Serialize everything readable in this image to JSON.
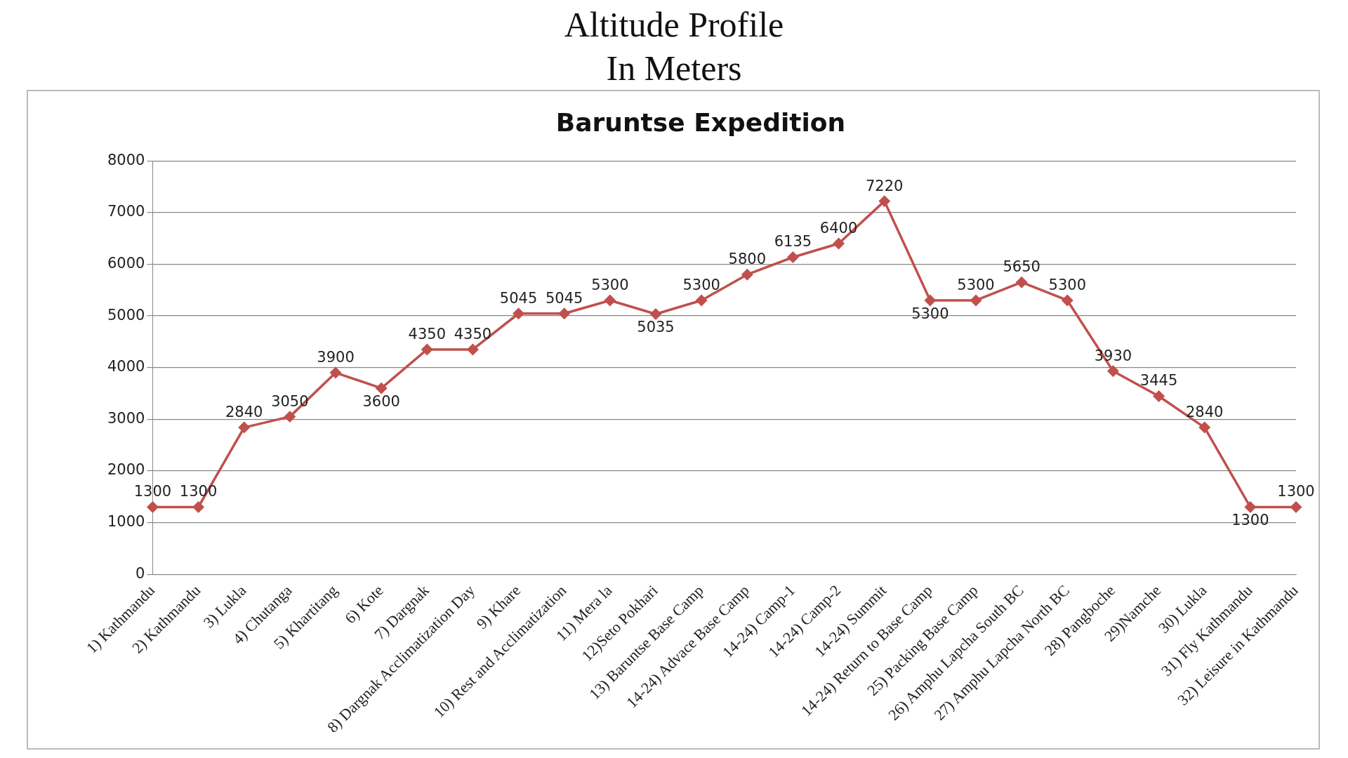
{
  "chart_data": {
    "type": "line",
    "title": "Altitude Profile\nIn Meters",
    "subtitle": "Baruntse Expedition",
    "categories": [
      "1) Kathmandu",
      "2) Kathmandu",
      "3) Lukla",
      "4) Chutanga",
      "5) Khartitang",
      "6) Kote",
      "7) Dargnak",
      "8) Dargnak Acclimatization Day",
      "9) Khare",
      "10) Rest and Acclimatization",
      "11) Mera la",
      "12)Seto Pokhari",
      "13) Baruntse Base Camp",
      "14-24) Advace Base Camp",
      "14-24) Camp-1",
      "14-24) Camp-2",
      "14-24) Summit",
      "14-24) Return to Base Camp",
      "25) Packing Base Camp",
      "26) Amphu Lapcha South BC",
      "27) Amphu Lapcha North BC",
      "28) Pangboche",
      "29)Namche",
      "30) Lukla",
      "31) Fly Kathmandu",
      "32) Leisure in Kathmandu"
    ],
    "series": [
      {
        "color": "#c0504d",
        "values": [
          1300,
          1300,
          2840,
          3050,
          3900,
          3600,
          4350,
          4350,
          5045,
          5045,
          5300,
          5035,
          5300,
          5800,
          6135,
          6400,
          7220,
          5300,
          5300,
          5650,
          5300,
          3930,
          3445,
          2840,
          1300,
          1300
        ]
      }
    ],
    "ylim": [
      0,
      8000
    ],
    "yticks": [
      0,
      1000,
      2000,
      3000,
      4000,
      5000,
      6000,
      7000,
      8000
    ],
    "grid": "y",
    "legend": false,
    "marker": "diamond",
    "line_style": "solid",
    "data_labels": true
  }
}
